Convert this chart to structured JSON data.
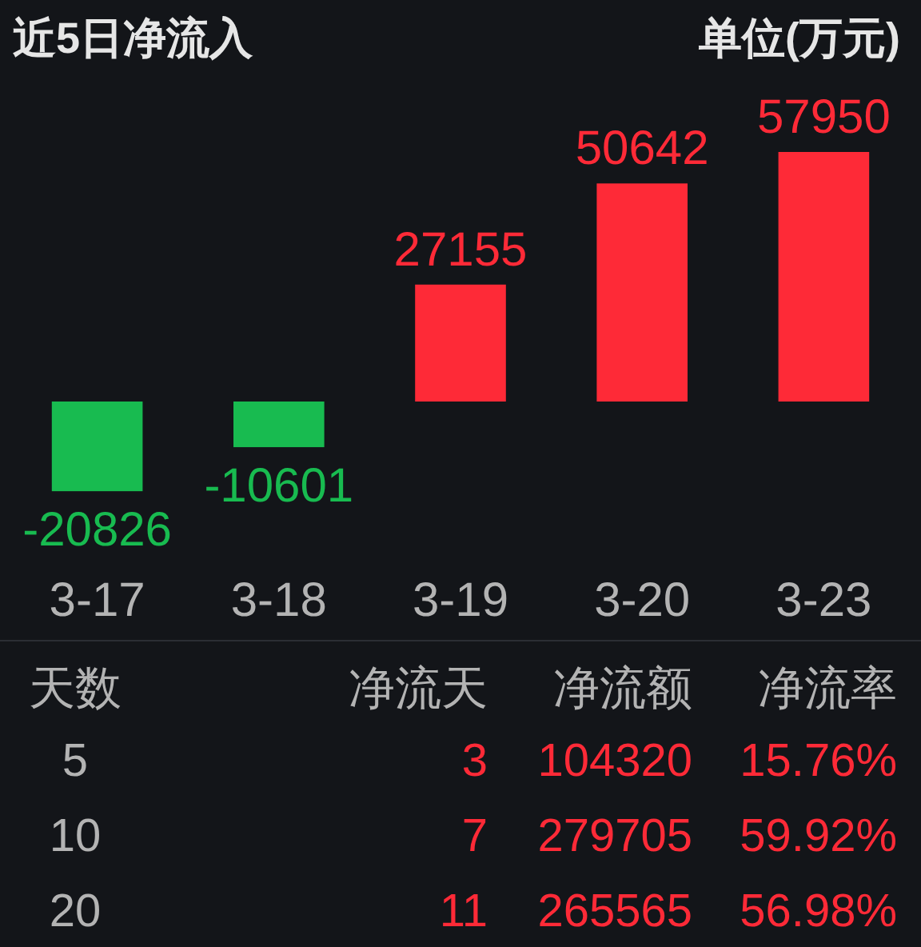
{
  "chart_data": [
    {
      "type": "bar",
      "title": "近5日净流入",
      "subtitle": "单位(万元)",
      "categories": [
        "3-17",
        "3-18",
        "3-19",
        "3-20",
        "3-23"
      ],
      "values": [
        -20826,
        -10601,
        27155,
        50642,
        57950
      ],
      "colors": [
        "#18bb50",
        "#18bb50",
        "#fe2a37",
        "#fe2a37",
        "#fe2a37"
      ],
      "data_labels": true
    },
    {
      "type": "other",
      "legend_title": "天数",
      "categories": [
        "净流天",
        "净流额",
        "净流率"
      ],
      "series": [
        {
          "name": "5",
          "values": [
            3,
            104320,
            15.76
          ],
          "value_labels": [
            "3",
            "104320",
            "15.76%"
          ]
        },
        {
          "name": "10",
          "values": [
            7,
            279705,
            59.92
          ],
          "value_labels": [
            "7",
            "279705",
            "59.92%"
          ]
        },
        {
          "name": "20",
          "values": [
            11,
            265565,
            56.98
          ],
          "value_labels": [
            "11",
            "265565",
            "56.98%"
          ]
        }
      ]
    }
  ]
}
